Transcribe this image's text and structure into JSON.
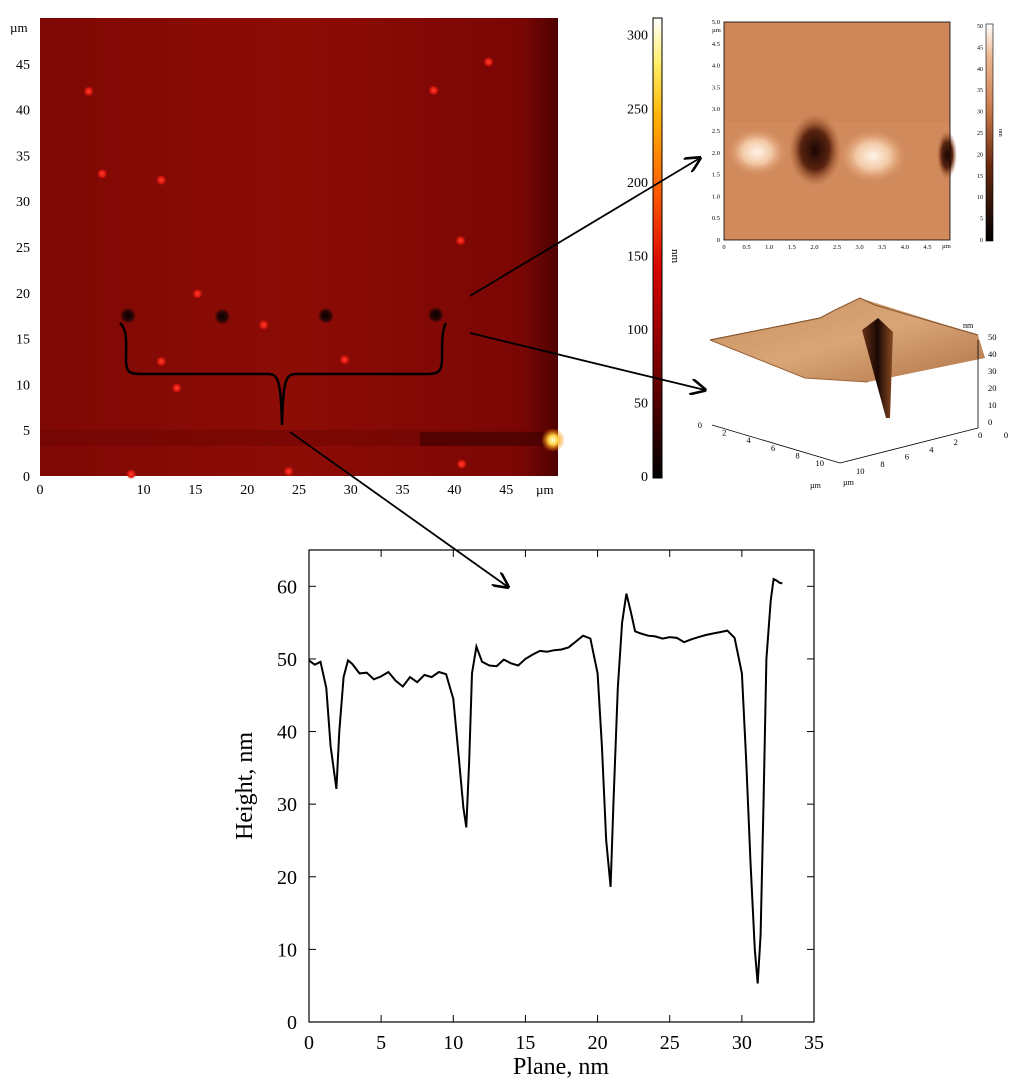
{
  "colors": {
    "afm_background": "#8a0a05",
    "afm_dark_edge": "#5a0302",
    "spot_red": "#e8201a",
    "pit_dark": "#2a0605",
    "arrow": "#000000",
    "profile_line": "#000000",
    "copper_light": "#e8b48a",
    "copper_mid": "#c8784a",
    "copper_dark": "#3a1408"
  },
  "icons": [
    "arrow-right-icon",
    "curly-brace-icon"
  ],
  "main_map": {
    "unit_y": "µm",
    "unit_x": "µm",
    "x_ticks": [
      "0",
      "10",
      "15",
      "20",
      "25",
      "30",
      "35",
      "40",
      "45"
    ],
    "y_ticks": [
      "45",
      "40",
      "35",
      "30",
      "25",
      "20",
      "15",
      "10",
      "5",
      "0"
    ],
    "x_tick_values": [
      0,
      10,
      15,
      20,
      25,
      30,
      35,
      40,
      45
    ],
    "y_tick_values": [
      45,
      40,
      35,
      30,
      25,
      20,
      15,
      10,
      5,
      0
    ],
    "x_range": [
      0,
      50
    ],
    "y_range": [
      0,
      50
    ],
    "pits": [
      [
        8.5,
        17.5
      ],
      [
        17.6,
        17.4
      ],
      [
        27.6,
        17.5
      ],
      [
        38.2,
        17.6
      ]
    ],
    "red_spots": [
      [
        4.7,
        42
      ],
      [
        15.2,
        19.9
      ],
      [
        40.6,
        25.7
      ],
      [
        13.2,
        9.6
      ],
      [
        11.7,
        12.5
      ],
      [
        29.4,
        12.7
      ],
      [
        21.6,
        16.5
      ],
      [
        24,
        0.5
      ],
      [
        8.8,
        0.2
      ],
      [
        40.7,
        1.3
      ],
      [
        11.7,
        32.3
      ],
      [
        43.3,
        45.2
      ],
      [
        38,
        42.1
      ],
      [
        6,
        33
      ]
    ]
  },
  "colorbar": {
    "ticks": [
      "300",
      "250",
      "200",
      "150",
      "100",
      "50",
      "0"
    ],
    "tick_values": [
      300,
      250,
      200,
      150,
      100,
      50,
      0
    ],
    "range": [
      0,
      310
    ],
    "unit": "nm"
  },
  "inset_2d": {
    "unit_y": "µm",
    "unit_x": "µm",
    "y_ticks": [
      "5.0",
      "4.5",
      "4.0",
      "3.5",
      "3.0",
      "2.5",
      "2.0",
      "1.5",
      "1.0",
      "0.5",
      "0"
    ],
    "x_ticks": [
      "0",
      "0.5",
      "1.0",
      "1.5",
      "2.0",
      "2.5",
      "3.0",
      "3.5",
      "4.0",
      "4.5"
    ],
    "y_tick_values": [
      5.0,
      4.5,
      4.0,
      3.5,
      3.0,
      2.5,
      2.0,
      1.5,
      1.0,
      0.5,
      0
    ],
    "x_tick_values": [
      0,
      0.5,
      1.0,
      1.5,
      2.0,
      2.5,
      3.0,
      3.5,
      4.0,
      4.5
    ],
    "range": [
      0,
      5.0
    ],
    "colorbar_ticks": [
      "50",
      "45",
      "40",
      "35",
      "30",
      "25",
      "20",
      "15",
      "10",
      "5",
      "0"
    ],
    "colorbar_tick_values": [
      50,
      45,
      40,
      35,
      30,
      25,
      20,
      15,
      10,
      5,
      0
    ],
    "colorbar_unit": "nm"
  },
  "inset_3d": {
    "z_unit": "nm",
    "z_ticks": [
      "50",
      "40",
      "30",
      "20",
      "10",
      "0"
    ],
    "left_axis_ticks": [
      "0",
      "2",
      "4",
      "6",
      "8",
      "10"
    ],
    "left_axis_unit": "µm",
    "right_axis_ticks": [
      "10",
      "8",
      "6",
      "4",
      "2",
      "0"
    ],
    "right_axis_unit": "µm"
  },
  "chart_data": {
    "type": "line",
    "title": "",
    "xlabel": "Plane, nm",
    "ylabel": "Height, nm",
    "xlim": [
      0,
      35
    ],
    "ylim": [
      0,
      65
    ],
    "x_ticks": [
      0,
      5,
      10,
      15,
      20,
      25,
      30,
      35
    ],
    "y_ticks": [
      0,
      10,
      20,
      30,
      40,
      50,
      60
    ],
    "series": [
      {
        "x": [
          0,
          0.4,
          0.8,
          1.2,
          1.5,
          1.9,
          2.1,
          2.4,
          2.7,
          3.0,
          3.5,
          4.0,
          4.5,
          5.0,
          5.5,
          6.0,
          6.5,
          7.0,
          7.5,
          8.0,
          8.5,
          9.0,
          9.5,
          10.0,
          10.4,
          10.7,
          10.9,
          11.1,
          11.3,
          11.6,
          12.0,
          12.5,
          13.0,
          13.5,
          14.0,
          14.5,
          15.0,
          15.5,
          16.0,
          16.5,
          17.0,
          17.5,
          18.0,
          18.5,
          19.0,
          19.5,
          20.0,
          20.3,
          20.6,
          20.9,
          21.1,
          21.4,
          21.7,
          22.0,
          22.3,
          22.6,
          23.0,
          23.5,
          24.0,
          24.5,
          25.0,
          25.5,
          26.0,
          26.5,
          27.0,
          27.5,
          28.0,
          28.5,
          29.0,
          29.5,
          30.0,
          30.3,
          30.6,
          30.9,
          31.1,
          31.3,
          31.5,
          31.7,
          32.0,
          32.2,
          32.4,
          32.6,
          32.8
        ],
        "y": [
          49.8,
          49.2,
          49.6,
          46.0,
          38.0,
          32.1,
          40.0,
          47.5,
          49.8,
          49.3,
          48.0,
          48.1,
          47.2,
          47.6,
          48.2,
          47.0,
          46.2,
          47.5,
          46.8,
          47.8,
          47.5,
          48.2,
          47.9,
          44.5,
          36.0,
          29.5,
          26.8,
          36.0,
          48.0,
          51.7,
          49.6,
          49.1,
          49.0,
          49.9,
          49.4,
          49.1,
          50.0,
          50.6,
          51.1,
          51.0,
          51.2,
          51.3,
          51.6,
          52.4,
          53.2,
          52.8,
          48.0,
          38.0,
          25.0,
          18.6,
          30.0,
          46.0,
          55.0,
          59.0,
          56.5,
          53.8,
          53.5,
          53.2,
          53.1,
          52.8,
          53.0,
          52.9,
          52.3,
          52.7,
          53.0,
          53.3,
          53.5,
          53.7,
          53.9,
          52.9,
          48.0,
          36.0,
          22.0,
          10.0,
          5.3,
          12.0,
          30.0,
          50.0,
          58.0,
          61.0,
          60.8,
          60.5,
          60.4
        ]
      }
    ]
  }
}
